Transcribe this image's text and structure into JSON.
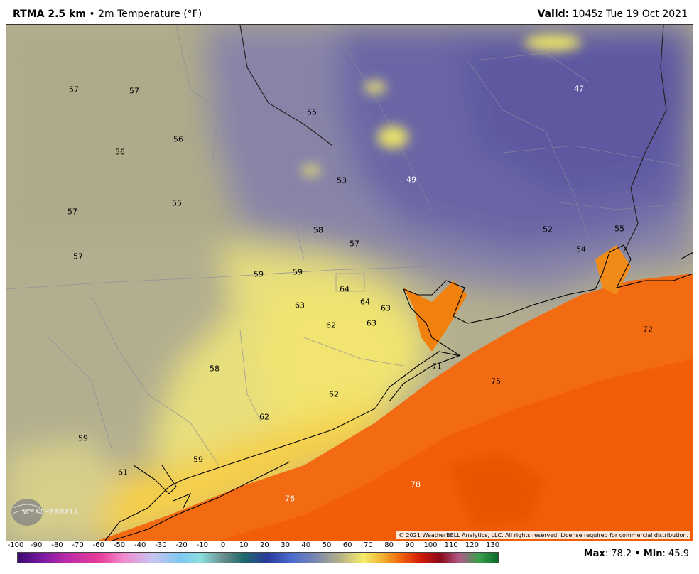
{
  "header": {
    "model": "RTMA 2.5 km",
    "bullet": "•",
    "field": "2m Temperature (°F)",
    "valid_label": "Valid:",
    "valid_time": "1045z Tue 19 Oct 2021"
  },
  "map": {
    "values": [
      {
        "text": "57",
        "light": false
      },
      {
        "text": "57",
        "light": false
      },
      {
        "text": "55",
        "light": false
      },
      {
        "text": "47",
        "light": true
      },
      {
        "text": "56",
        "light": false
      },
      {
        "text": "56",
        "light": false
      },
      {
        "text": "53",
        "light": false
      },
      {
        "text": "49",
        "light": true
      },
      {
        "text": "57",
        "light": false
      },
      {
        "text": "55",
        "light": false
      },
      {
        "text": "58",
        "light": false
      },
      {
        "text": "57",
        "light": false
      },
      {
        "text": "52",
        "light": false
      },
      {
        "text": "55",
        "light": false
      },
      {
        "text": "54",
        "light": false
      },
      {
        "text": "57",
        "light": false
      },
      {
        "text": "59",
        "light": false
      },
      {
        "text": "59",
        "light": false
      },
      {
        "text": "64",
        "light": false
      },
      {
        "text": "64",
        "light": false
      },
      {
        "text": "63",
        "light": false
      },
      {
        "text": "63",
        "light": false
      },
      {
        "text": "62",
        "light": false
      },
      {
        "text": "63",
        "light": false
      },
      {
        "text": "72",
        "light": false
      },
      {
        "text": "71",
        "light": false
      },
      {
        "text": "58",
        "light": false
      },
      {
        "text": "75",
        "light": false
      },
      {
        "text": "62",
        "light": false
      },
      {
        "text": "62",
        "light": false
      },
      {
        "text": "59",
        "light": false
      },
      {
        "text": "59",
        "light": false
      },
      {
        "text": "61",
        "light": false
      },
      {
        "text": "78",
        "light": true
      },
      {
        "text": "76",
        "light": true
      }
    ],
    "copyright": "© 2021 WeatherBELL Analytics, LLC. All rights reserved. License required for commercial distribution.",
    "logo_text": "WEATHERBELL"
  },
  "legend": {
    "ticks": [
      "-100",
      "-90",
      "-80",
      "-70",
      "-60",
      "-50",
      "-40",
      "-30",
      "-20",
      "-10",
      "0",
      "10",
      "20",
      "30",
      "40",
      "50",
      "60",
      "70",
      "80",
      "90",
      "100",
      "110",
      "120",
      "130"
    ],
    "max_label": "Max",
    "max_value": ": 78.2",
    "min_label": "Min",
    "min_value": ": 45.9",
    "sep": "•"
  },
  "colors": {
    "cool": "#6f6aa8",
    "mild": "#b5b08a",
    "warm_yellow": "#f4e86a",
    "hot_orange": "#f25f0a",
    "coast": "#000000"
  }
}
